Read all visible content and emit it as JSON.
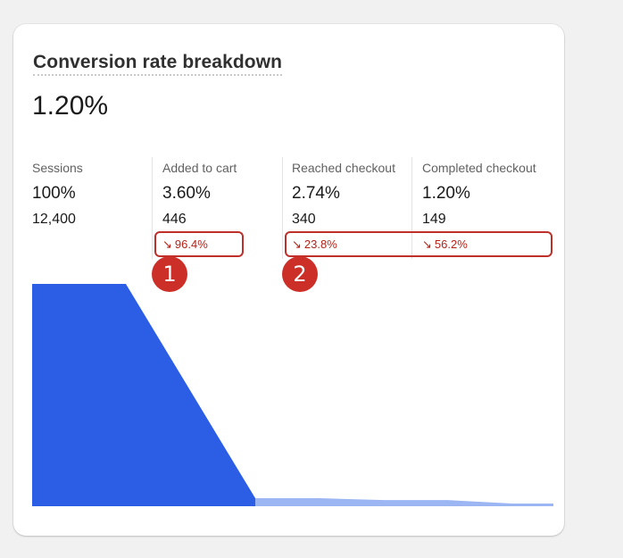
{
  "card": {
    "title": "Conversion rate breakdown",
    "conversion_rate": "1.20%"
  },
  "steps": [
    {
      "label": "Sessions",
      "percent": "100%",
      "count": "12,400",
      "change": ""
    },
    {
      "label": "Added to cart",
      "percent": "3.60%",
      "count": "446",
      "change": "96.4%"
    },
    {
      "label": "Reached checkout",
      "percent": "2.74%",
      "count": "340",
      "change": "23.8%"
    },
    {
      "label": "Completed checkout",
      "percent": "1.20%",
      "count": "149",
      "change": "56.2%"
    }
  ],
  "change_arrow": "↘",
  "annotations": [
    {
      "label": "1"
    },
    {
      "label": "2"
    }
  ],
  "colors": {
    "funnel_primary": "#2c5de5",
    "funnel_secondary": "#9bb6f3",
    "negative_text": "#b42318",
    "annotation_red": "#cc2f28"
  },
  "funnel_data": {
    "type": "funnel",
    "stages": [
      "Sessions",
      "Added to cart",
      "Reached checkout",
      "Completed checkout"
    ],
    "values": [
      12400,
      446,
      340,
      149
    ],
    "percent_of_sessions": [
      100,
      3.6,
      2.74,
      1.2
    ]
  }
}
